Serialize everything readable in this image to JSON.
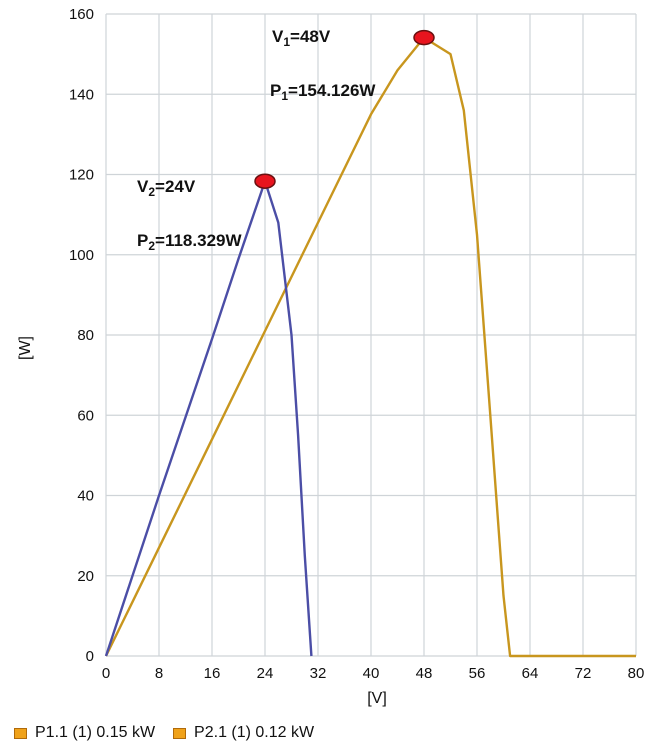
{
  "chart_data": {
    "type": "line",
    "xlabel": "[V]",
    "ylabel": "[W]",
    "xlim": [
      0,
      80
    ],
    "ylim": [
      0,
      160
    ],
    "xticks": [
      0,
      8,
      16,
      24,
      32,
      40,
      48,
      56,
      64,
      72,
      80
    ],
    "yticks": [
      0,
      20,
      40,
      60,
      80,
      100,
      120,
      140,
      160
    ],
    "grid": true,
    "legend_position": "bottom",
    "series": [
      {
        "name": "P1.1 (1) 0.15 kW",
        "color": "#c8961e",
        "x": [
          0,
          8,
          16,
          24,
          32,
          40,
          44,
          48,
          52,
          54,
          56,
          58,
          60,
          61,
          62,
          64,
          72,
          80
        ],
        "y": [
          0,
          27,
          54,
          81,
          108,
          135,
          146,
          154.126,
          150,
          136,
          105,
          60,
          15,
          0,
          0,
          0,
          0,
          0
        ]
      },
      {
        "name": "P2.1 (1) 0.12 kW",
        "color": "#4b4ea6",
        "x": [
          0,
          8,
          16,
          20,
          24,
          26,
          28,
          29,
          30,
          31
        ],
        "y": [
          0,
          40,
          79,
          99,
          118.329,
          108,
          80,
          55,
          25,
          0
        ]
      }
    ],
    "markers": [
      {
        "x": 48,
        "y": 154.126,
        "color": "#e8141e"
      },
      {
        "x": 24,
        "y": 118.329,
        "color": "#e8141e"
      }
    ],
    "annotations": [
      {
        "v_prefix": "V",
        "v_sub": "1",
        "v_text": "=48V",
        "p_prefix": "P",
        "p_sub": "1",
        "p_text": "=154.126W"
      },
      {
        "v_prefix": "V",
        "v_sub": "2",
        "v_text": "=24V",
        "p_prefix": "P",
        "p_sub": "2",
        "p_text": "=118.329W"
      }
    ]
  }
}
